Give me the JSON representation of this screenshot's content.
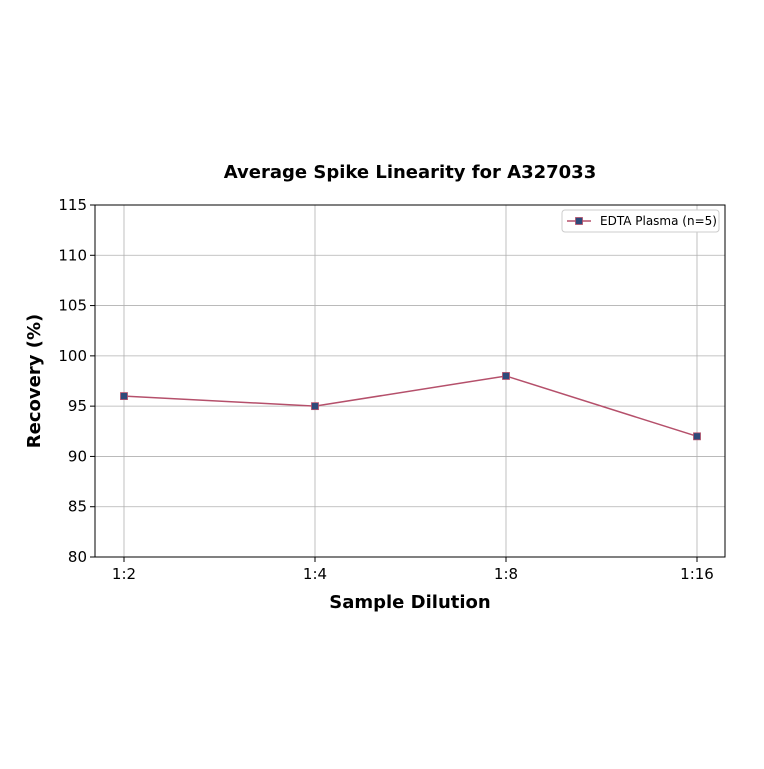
{
  "chart_data": {
    "type": "line",
    "title": "Average Spike Linearity for A327033",
    "xlabel": "Sample Dilution",
    "ylabel": "Recovery (%)",
    "categories": [
      "1:2",
      "1:4",
      "1:8",
      "1:16"
    ],
    "series": [
      {
        "name": "EDTA Plasma (n=5)",
        "values": [
          96,
          95,
          98,
          92
        ],
        "line_color": "#b5506b",
        "marker": "square",
        "marker_color": "#2e4a7a"
      }
    ],
    "ylim": [
      80,
      115
    ],
    "yticks": [
      "80",
      "85",
      "90",
      "95",
      "100",
      "105",
      "110",
      "115"
    ],
    "grid": true,
    "legend_position": "top-right"
  }
}
